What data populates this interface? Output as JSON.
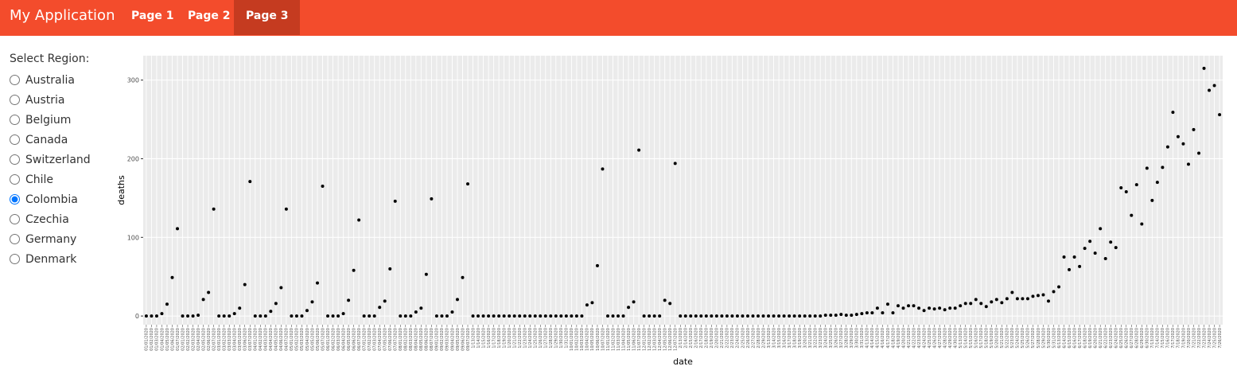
{
  "navbar": {
    "brand": "My Application",
    "tabs": [
      "Page 1",
      "Page 2",
      "Page 3"
    ],
    "active_tab": 2
  },
  "sidebar": {
    "label": "Select Region:",
    "options": [
      "Australia",
      "Austria",
      "Belgium",
      "Canada",
      "Switzerland",
      "Chile",
      "Colombia",
      "Czechia",
      "Germany",
      "Denmark"
    ],
    "selected": 6
  },
  "chart_data": {
    "type": "scatter",
    "x_label": "date",
    "y_label": "deaths",
    "color": "#000000",
    "grid": true,
    "ylim": [
      -11,
      331
    ],
    "yticks": [
      0,
      100,
      200,
      300
    ],
    "categories": [
      "01/01/2020",
      "01/02/2020",
      "01/03/2020",
      "01/04/2020",
      "01/05/2020",
      "01/06/2020",
      "01/07/2020",
      "02/01/2020",
      "02/02/2020",
      "02/03/2020",
      "02/04/2020",
      "02/05/2020",
      "02/06/2020",
      "02/07/2020",
      "03/01/2020",
      "03/02/2020",
      "03/03/2020",
      "03/04/2020",
      "03/05/2020",
      "03/06/2020",
      "03/07/2020",
      "04/01/2020",
      "04/02/2020",
      "04/03/2020",
      "04/04/2020",
      "04/05/2020",
      "04/06/2020",
      "04/07/2020",
      "05/01/2020",
      "05/02/2020",
      "05/03/2020",
      "05/04/2020",
      "05/05/2020",
      "05/06/2020",
      "05/07/2020",
      "06/01/2020",
      "06/02/2020",
      "06/03/2020",
      "06/04/2020",
      "06/05/2020",
      "06/06/2020",
      "06/07/2020",
      "07/01/2020",
      "07/02/2020",
      "07/03/2020",
      "07/04/2020",
      "07/05/2020",
      "07/06/2020",
      "07/07/2020",
      "08/01/2020",
      "08/02/2020",
      "08/03/2020",
      "08/04/2020",
      "08/05/2020",
      "08/06/2020",
      "08/07/2020",
      "09/01/2020",
      "09/02/2020",
      "09/03/2020",
      "09/04/2020",
      "09/05/2020",
      "09/06/2020",
      "09/07/2020",
      "1/13/2020",
      "1/14/2020",
      "1/15/2020",
      "1/16/2020",
      "1/17/2020",
      "1/18/2020",
      "1/19/2020",
      "1/20/2020",
      "1/21/2020",
      "1/22/2020",
      "1/23/2020",
      "1/24/2020",
      "1/25/2020",
      "1/26/2020",
      "1/27/2020",
      "1/28/2020",
      "1/29/2020",
      "1/30/2020",
      "1/31/2020",
      "10/01/2020",
      "10/02/2020",
      "10/03/2020",
      "10/04/2020",
      "10/05/2020",
      "10/06/2020",
      "10/07/2020",
      "11/01/2020",
      "11/02/2020",
      "11/03/2020",
      "11/04/2020",
      "11/05/2020",
      "11/06/2020",
      "11/07/2020",
      "12/01/2020",
      "12/02/2020",
      "12/03/2020",
      "12/04/2020",
      "12/05/2020",
      "12/06/2020",
      "12/07/2020",
      "2/13/2020",
      "2/14/2020",
      "2/15/2020",
      "2/16/2020",
      "2/17/2020",
      "2/18/2020",
      "2/19/2020",
      "2/20/2020",
      "2/21/2020",
      "2/22/2020",
      "2/23/2020",
      "2/24/2020",
      "2/25/2020",
      "2/26/2020",
      "2/27/2020",
      "2/28/2020",
      "2/29/2020",
      "3/13/2020",
      "3/14/2020",
      "3/15/2020",
      "3/16/2020",
      "3/17/2020",
      "3/18/2020",
      "3/19/2020",
      "3/20/2020",
      "3/21/2020",
      "3/22/2020",
      "3/23/2020",
      "3/24/2020",
      "3/25/2020",
      "3/26/2020",
      "3/27/2020",
      "3/28/2020",
      "3/29/2020",
      "3/30/2020",
      "3/31/2020",
      "4/13/2020",
      "4/14/2020",
      "4/15/2020",
      "4/16/2020",
      "4/17/2020",
      "4/18/2020",
      "4/19/2020",
      "4/20/2020",
      "4/21/2020",
      "4/22/2020",
      "4/23/2020",
      "4/24/2020",
      "4/25/2020",
      "4/26/2020",
      "4/27/2020",
      "4/28/2020",
      "4/29/2020",
      "4/30/2020",
      "5/13/2020",
      "5/14/2020",
      "5/15/2020",
      "5/16/2020",
      "5/17/2020",
      "5/18/2020",
      "5/19/2020",
      "5/20/2020",
      "5/21/2020",
      "5/22/2020",
      "5/23/2020",
      "5/24/2020",
      "5/25/2020",
      "5/26/2020",
      "5/27/2020",
      "5/28/2020",
      "5/29/2020",
      "5/30/2020",
      "5/31/2020",
      "6/13/2020",
      "6/14/2020",
      "6/15/2020",
      "6/16/2020",
      "6/17/2020",
      "6/18/2020",
      "6/19/2020",
      "6/20/2020",
      "6/21/2020",
      "6/22/2020",
      "6/23/2020",
      "6/24/2020",
      "6/25/2020",
      "6/26/2020",
      "6/27/2020",
      "6/28/2020",
      "6/29/2020",
      "6/30/2020",
      "7/13/2020",
      "7/14/2020",
      "7/15/2020",
      "7/16/2020",
      "7/17/2020",
      "7/18/2020",
      "7/19/2020",
      "7/20/2020",
      "7/21/2020",
      "7/22/2020",
      "7/23/2020",
      "7/24/2020",
      "7/25/2020",
      "7/26/2020"
    ],
    "values": [
      0,
      0,
      0,
      3,
      15,
      49,
      111,
      0,
      0,
      0,
      1,
      21,
      30,
      136,
      0,
      0,
      0,
      3,
      10,
      40,
      171,
      0,
      0,
      0,
      6,
      16,
      36,
      136,
      0,
      0,
      0,
      7,
      18,
      42,
      165,
      0,
      0,
      0,
      3,
      20,
      58,
      122,
      0,
      0,
      0,
      11,
      19,
      60,
      146,
      0,
      0,
      0,
      5,
      10,
      53,
      149,
      0,
      0,
      0,
      5,
      21,
      49,
      168,
      0,
      0,
      0,
      0,
      0,
      0,
      0,
      0,
      0,
      0,
      0,
      0,
      0,
      0,
      0,
      0,
      0,
      0,
      0,
      0,
      0,
      0,
      14,
      17,
      64,
      187,
      0,
      0,
      0,
      0,
      11,
      18,
      211,
      0,
      0,
      0,
      0,
      20,
      16,
      194,
      0,
      0,
      0,
      0,
      0,
      0,
      0,
      0,
      0,
      0,
      0,
      0,
      0,
      0,
      0,
      0,
      0,
      0,
      0,
      0,
      0,
      0,
      0,
      0,
      0,
      0,
      0,
      0,
      1,
      1,
      1,
      2,
      1,
      1,
      2,
      3,
      4,
      4,
      10,
      4,
      15,
      4,
      13,
      10,
      13,
      13,
      10,
      7,
      10,
      9,
      10,
      8,
      10,
      10,
      13,
      16,
      16,
      21,
      16,
      12,
      18,
      21,
      17,
      22,
      30,
      22,
      22,
      22,
      25,
      26,
      27,
      19,
      31,
      37,
      75,
      59,
      75,
      63,
      86,
      95,
      80,
      111,
      73,
      94,
      87,
      163,
      158,
      128,
      167,
      117,
      188,
      147,
      170,
      189,
      215,
      259,
      228,
      219,
      193,
      237,
      207,
      315,
      287,
      293,
      256
    ]
  }
}
